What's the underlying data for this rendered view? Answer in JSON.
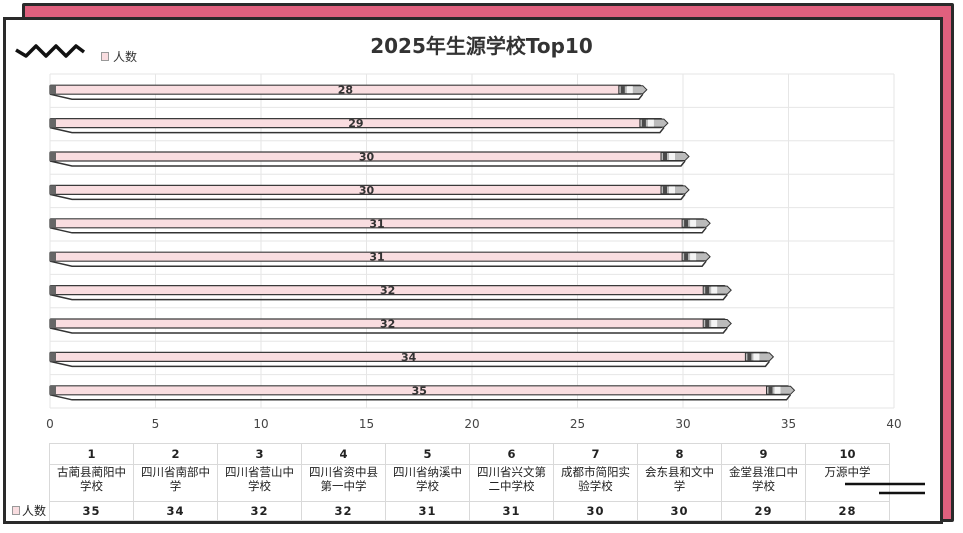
{
  "chart_data": {
    "type": "bar",
    "orientation": "horizontal",
    "title": "2025年生源学校Top10",
    "legend": "人数",
    "legend_position": "top-left",
    "xlim": [
      0,
      40
    ],
    "x_ticks": [
      "0",
      "5",
      "10",
      "15",
      "20",
      "25",
      "30",
      "35",
      "40"
    ],
    "grid": true,
    "bar_color": "#f9dde0",
    "ranks": [
      "1",
      "2",
      "3",
      "4",
      "5",
      "6",
      "7",
      "8",
      "9",
      "10"
    ],
    "categories": [
      "古蔺县蔺阳中学校",
      "四川省南部中学",
      "四川省营山中学校",
      "四川省资中县第一中学",
      "四川省纳溪中学校",
      "四川省兴文第二中学校",
      "成都市简阳实验学校",
      "会东县和文中学",
      "金堂县淮口中学校",
      "万源中学"
    ],
    "series": [
      {
        "name": "人数",
        "values": [
          35,
          34,
          32,
          32,
          31,
          31,
          30,
          30,
          29,
          28
        ]
      }
    ]
  },
  "table": {
    "row_label": "人数",
    "category_lines": [
      [
        "古蔺县蔺阳中",
        "学校"
      ],
      [
        "四川省南部中",
        "学"
      ],
      [
        "四川省营山中",
        "学校"
      ],
      [
        "四川省资中县",
        "第一中学"
      ],
      [
        "四川省纳溪中",
        "学校"
      ],
      [
        "四川省兴文第",
        "二中学校"
      ],
      [
        "成都市简阳实",
        "验学校"
      ],
      [
        "会东县和文中",
        "学"
      ],
      [
        "金堂县淮口中",
        "学校"
      ],
      [
        "万源中学",
        ""
      ]
    ]
  },
  "colors": {
    "accent": "#e0607e",
    "bar": "#f9dde0",
    "frame": "#2a2a2a"
  }
}
